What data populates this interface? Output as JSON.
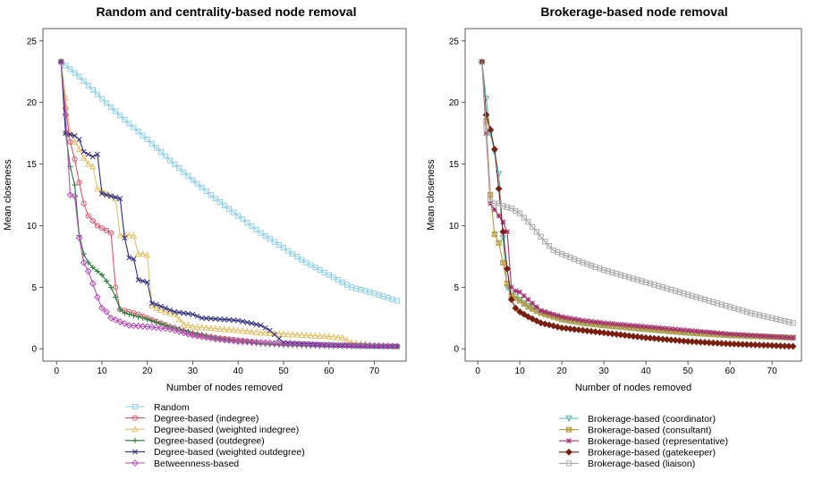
{
  "chart_data": [
    {
      "type": "line",
      "title": "Random and centrality-based node removal",
      "xlabel": "Number of nodes removed",
      "ylabel": "Mean closeness",
      "xlim": [
        -3,
        77
      ],
      "ylim": [
        -1,
        26
      ],
      "xticks": [
        0,
        10,
        20,
        30,
        40,
        50,
        60,
        70
      ],
      "yticks": [
        0,
        5,
        10,
        15,
        20,
        25
      ],
      "grid": false,
      "legend_position": "bottom",
      "series": [
        {
          "name": "Random",
          "color": "#8ed0ea",
          "marker": "square",
          "points": [
            [
              1,
              23.3
            ],
            [
              5,
              22.1
            ],
            [
              10,
              20.3
            ],
            [
              15,
              18.6
            ],
            [
              20,
              17.0
            ],
            [
              25,
              15.3
            ],
            [
              30,
              13.7
            ],
            [
              35,
              12.2
            ],
            [
              40,
              10.8
            ],
            [
              45,
              9.4
            ],
            [
              50,
              8.2
            ],
            [
              55,
              7.0
            ],
            [
              60,
              6.0
            ],
            [
              65,
              5.0
            ],
            [
              70,
              4.5
            ],
            [
              75,
              3.9
            ]
          ]
        },
        {
          "name": "Degree-based (indegree)",
          "color": "#e2566b",
          "marker": "circle",
          "points": [
            [
              1,
              23.3
            ],
            [
              2,
              19.5
            ],
            [
              3,
              16.8
            ],
            [
              4,
              15.4
            ],
            [
              5,
              13.5
            ],
            [
              6,
              11.8
            ],
            [
              7,
              10.8
            ],
            [
              8,
              10.4
            ],
            [
              9,
              10.0
            ],
            [
              10,
              9.8
            ],
            [
              11,
              9.6
            ],
            [
              12,
              9.4
            ],
            [
              13,
              5.0
            ],
            [
              14,
              3.2
            ],
            [
              15,
              3.1
            ],
            [
              18,
              2.8
            ],
            [
              20,
              2.5
            ],
            [
              25,
              1.8
            ],
            [
              30,
              1.2
            ],
            [
              35,
              0.9
            ],
            [
              40,
              0.7
            ],
            [
              45,
              0.5
            ],
            [
              50,
              0.4
            ],
            [
              60,
              0.3
            ],
            [
              75,
              0.2
            ]
          ]
        },
        {
          "name": "Degree-based (weighted indegree)",
          "color": "#e3c36c",
          "marker": "triangle",
          "points": [
            [
              1,
              23.3
            ],
            [
              3,
              17.5
            ],
            [
              4,
              16.8
            ],
            [
              5,
              16.2
            ],
            [
              6,
              15.5
            ],
            [
              7,
              15.0
            ],
            [
              8,
              14.8
            ],
            [
              9,
              13.0
            ],
            [
              10,
              12.8
            ],
            [
              11,
              12.6
            ],
            [
              12,
              12.4
            ],
            [
              13,
              12.2
            ],
            [
              14,
              9.2
            ],
            [
              15,
              9.3
            ],
            [
              16,
              9.2
            ],
            [
              17,
              9.2
            ],
            [
              18,
              7.7
            ],
            [
              19,
              7.7
            ],
            [
              20,
              7.6
            ],
            [
              21,
              3.5
            ],
            [
              22,
              3.3
            ],
            [
              24,
              3.0
            ],
            [
              26,
              2.8
            ],
            [
              28,
              2.0
            ],
            [
              30,
              1.8
            ],
            [
              40,
              1.5
            ],
            [
              45,
              1.3
            ],
            [
              50,
              1.2
            ],
            [
              55,
              1.1
            ],
            [
              60,
              1.0
            ],
            [
              63,
              0.9
            ],
            [
              65,
              0.5
            ],
            [
              70,
              0.3
            ],
            [
              75,
              0.2
            ]
          ]
        },
        {
          "name": "Degree-based (outdegree)",
          "color": "#1e7d34",
          "marker": "plus",
          "points": [
            [
              1,
              23.3
            ],
            [
              2,
              17.5
            ],
            [
              3,
              14.8
            ],
            [
              4,
              13.3
            ],
            [
              5,
              9.2
            ],
            [
              6,
              7.7
            ],
            [
              7,
              7.0
            ],
            [
              8,
              6.6
            ],
            [
              9,
              6.3
            ],
            [
              10,
              6.0
            ],
            [
              11,
              5.5
            ],
            [
              12,
              5.0
            ],
            [
              13,
              4.2
            ],
            [
              14,
              3.2
            ],
            [
              15,
              2.9
            ],
            [
              18,
              2.6
            ],
            [
              20,
              2.4
            ],
            [
              25,
              1.8
            ],
            [
              30,
              1.3
            ],
            [
              35,
              0.9
            ],
            [
              40,
              0.6
            ],
            [
              45,
              0.4
            ],
            [
              50,
              0.3
            ],
            [
              60,
              0.2
            ],
            [
              75,
              0.2
            ]
          ]
        },
        {
          "name": "Degree-based (weighted outdegree)",
          "color": "#2a2a82",
          "marker": "x",
          "points": [
            [
              1,
              23.3
            ],
            [
              2,
              17.5
            ],
            [
              3,
              17.4
            ],
            [
              4,
              17.3
            ],
            [
              5,
              17.0
            ],
            [
              6,
              16.0
            ],
            [
              7,
              15.8
            ],
            [
              8,
              15.6
            ],
            [
              9,
              15.8
            ],
            [
              10,
              12.6
            ],
            [
              11,
              12.5
            ],
            [
              12,
              12.4
            ],
            [
              13,
              12.3
            ],
            [
              14,
              12.2
            ],
            [
              15,
              9.0
            ],
            [
              16,
              7.4
            ],
            [
              17,
              7.3
            ],
            [
              18,
              5.6
            ],
            [
              19,
              5.5
            ],
            [
              20,
              5.4
            ],
            [
              21,
              3.7
            ],
            [
              22,
              3.6
            ],
            [
              24,
              3.3
            ],
            [
              26,
              3.0
            ],
            [
              28,
              2.9
            ],
            [
              30,
              2.8
            ],
            [
              32,
              2.5
            ],
            [
              40,
              2.3
            ],
            [
              45,
              1.9
            ],
            [
              47,
              1.5
            ],
            [
              50,
              0.5
            ],
            [
              55,
              0.4
            ],
            [
              60,
              0.3
            ],
            [
              70,
              0.2
            ],
            [
              75,
              0.2
            ]
          ]
        },
        {
          "name": "Betweenness-based",
          "color": "#b64fb8",
          "marker": "diamond",
          "points": [
            [
              1,
              23.3
            ],
            [
              2,
              19.0
            ],
            [
              3,
              12.5
            ],
            [
              4,
              12.4
            ],
            [
              5,
              9.0
            ],
            [
              6,
              7.0
            ],
            [
              7,
              6.3
            ],
            [
              8,
              5.3
            ],
            [
              9,
              4.2
            ],
            [
              10,
              3.3
            ],
            [
              11,
              3.0
            ],
            [
              12,
              2.5
            ],
            [
              14,
              2.2
            ],
            [
              16,
              1.9
            ],
            [
              20,
              1.8
            ],
            [
              25,
              1.6
            ],
            [
              30,
              1.1
            ],
            [
              35,
              0.8
            ],
            [
              40,
              0.6
            ],
            [
              45,
              0.5
            ],
            [
              50,
              0.4
            ],
            [
              60,
              0.3
            ],
            [
              75,
              0.2
            ]
          ]
        }
      ]
    },
    {
      "type": "line",
      "title": "Brokerage-based node removal",
      "xlabel": "Number of nodes removed",
      "ylabel": "Mean closeness",
      "xlim": [
        -3,
        77
      ],
      "ylim": [
        -1,
        26
      ],
      "xticks": [
        0,
        10,
        20,
        30,
        40,
        50,
        60,
        70
      ],
      "yticks": [
        0,
        5,
        10,
        15,
        20,
        25
      ],
      "grid": false,
      "legend_position": "bottom",
      "series": [
        {
          "name": "Brokerage-based (coordinator)",
          "color": "#4fb8ad",
          "marker": "triangle-down",
          "points": [
            [
              1,
              23.3
            ],
            [
              2,
              20.3
            ],
            [
              3,
              17.5
            ],
            [
              4,
              16.0
            ],
            [
              5,
              14.2
            ],
            [
              6,
              9.0
            ],
            [
              7,
              5.0
            ],
            [
              8,
              4.5
            ],
            [
              10,
              4.0
            ],
            [
              12,
              3.5
            ],
            [
              15,
              3.0
            ],
            [
              20,
              2.4
            ],
            [
              25,
              2.1
            ],
            [
              30,
              1.9
            ],
            [
              40,
              1.6
            ],
            [
              50,
              1.3
            ],
            [
              60,
              1.1
            ],
            [
              75,
              0.9
            ]
          ]
        },
        {
          "name": "Brokerage-based (consultant)",
          "color": "#b59a3c",
          "marker": "square-x",
          "points": [
            [
              1,
              23.3
            ],
            [
              2,
              18.5
            ],
            [
              3,
              12.5
            ],
            [
              4,
              9.3
            ],
            [
              5,
              8.6
            ],
            [
              6,
              7.0
            ],
            [
              7,
              5.3
            ],
            [
              8,
              4.3
            ],
            [
              10,
              3.9
            ],
            [
              12,
              3.4
            ],
            [
              15,
              2.9
            ],
            [
              20,
              2.4
            ],
            [
              25,
              2.1
            ],
            [
              30,
              1.9
            ],
            [
              40,
              1.6
            ],
            [
              50,
              1.3
            ],
            [
              60,
              1.1
            ],
            [
              75,
              0.9
            ]
          ]
        },
        {
          "name": "Brokerage-based (representative)",
          "color": "#a6306f",
          "marker": "asterisk",
          "points": [
            [
              1,
              23.3
            ],
            [
              2,
              17.5
            ],
            [
              3,
              11.8
            ],
            [
              4,
              11.3
            ],
            [
              5,
              10.8
            ],
            [
              6,
              10.3
            ],
            [
              7,
              9.5
            ],
            [
              8,
              5.0
            ],
            [
              9,
              4.7
            ],
            [
              10,
              4.6
            ],
            [
              12,
              4.0
            ],
            [
              15,
              3.1
            ],
            [
              20,
              2.6
            ],
            [
              25,
              2.3
            ],
            [
              30,
              2.1
            ],
            [
              40,
              1.8
            ],
            [
              50,
              1.5
            ],
            [
              60,
              1.2
            ],
            [
              75,
              0.9
            ]
          ]
        },
        {
          "name": "Brokerage-based (gatekeeper)",
          "color": "#7a1f10",
          "marker": "diamond-plus",
          "points": [
            [
              1,
              23.3
            ],
            [
              2,
              19.0
            ],
            [
              3,
              17.8
            ],
            [
              4,
              16.2
            ],
            [
              5,
              13.0
            ],
            [
              6,
              9.5
            ],
            [
              7,
              6.5
            ],
            [
              8,
              4.0
            ],
            [
              9,
              3.3
            ],
            [
              10,
              3.0
            ],
            [
              12,
              2.6
            ],
            [
              15,
              2.1
            ],
            [
              20,
              1.7
            ],
            [
              25,
              1.5
            ],
            [
              30,
              1.3
            ],
            [
              40,
              0.9
            ],
            [
              50,
              0.6
            ],
            [
              60,
              0.4
            ],
            [
              75,
              0.2
            ]
          ]
        },
        {
          "name": "Brokerage-based (liaison)",
          "color": "#a9a9a9",
          "marker": "square-dot",
          "points": [
            [
              1,
              23.3
            ],
            [
              2,
              18.0
            ],
            [
              3,
              12.0
            ],
            [
              4,
              11.8
            ],
            [
              5,
              11.8
            ],
            [
              6,
              11.6
            ],
            [
              7,
              11.5
            ],
            [
              8,
              11.4
            ],
            [
              10,
              11.0
            ],
            [
              12,
              10.3
            ],
            [
              14,
              9.5
            ],
            [
              16,
              8.7
            ],
            [
              18,
              8.0
            ],
            [
              20,
              7.7
            ],
            [
              25,
              7.0
            ],
            [
              30,
              6.4
            ],
            [
              35,
              5.9
            ],
            [
              40,
              5.4
            ],
            [
              45,
              4.9
            ],
            [
              50,
              4.4
            ],
            [
              55,
              3.9
            ],
            [
              60,
              3.4
            ],
            [
              65,
              2.9
            ],
            [
              70,
              2.5
            ],
            [
              75,
              2.1
            ]
          ]
        }
      ]
    }
  ]
}
